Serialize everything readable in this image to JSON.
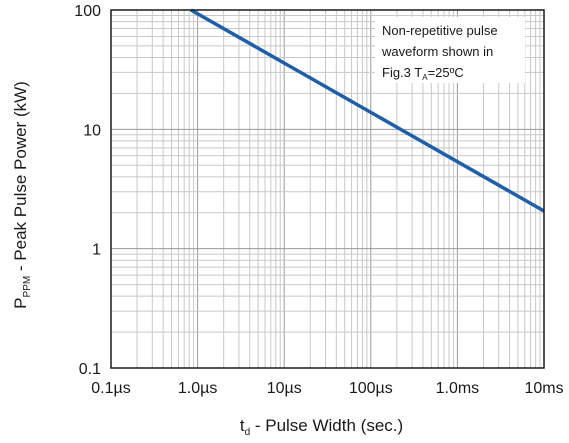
{
  "chart_data": {
    "type": "line",
    "x_scale": "log",
    "y_scale": "log",
    "xlim": [
      1e-07,
      0.01
    ],
    "ylim": [
      0.1,
      100
    ],
    "x_ticks": [
      {
        "value": 1e-07,
        "label": "0.1µs"
      },
      {
        "value": 1e-06,
        "label": "1.0µs"
      },
      {
        "value": 1e-05,
        "label": "10µs"
      },
      {
        "value": 0.0001,
        "label": "100µs"
      },
      {
        "value": 0.001,
        "label": "1.0ms"
      },
      {
        "value": 0.01,
        "label": "10ms"
      }
    ],
    "y_ticks": [
      {
        "value": 0.1,
        "label": "0.1"
      },
      {
        "value": 1,
        "label": "1"
      },
      {
        "value": 10,
        "label": "10"
      },
      {
        "value": 100,
        "label": "100"
      }
    ],
    "xlabel": {
      "main": "t",
      "sub": "d",
      "rest": " - Pulse Width (sec.)"
    },
    "ylabel": {
      "main": "P",
      "sub": "PPM",
      "rest": " - Peak Pulse Power (kW)"
    },
    "grid": true,
    "annotation": {
      "line1": "Non-repetitive pulse",
      "line2": "waveform shown in",
      "line3_a": "Fig.3 T",
      "line3_sub": "A",
      "line3_b": "=25ºC"
    },
    "series": [
      {
        "color": "#1f5fa8",
        "points": [
          [
            8.4e-07,
            100
          ],
          [
            0.01,
            2.07
          ]
        ]
      }
    ]
  }
}
